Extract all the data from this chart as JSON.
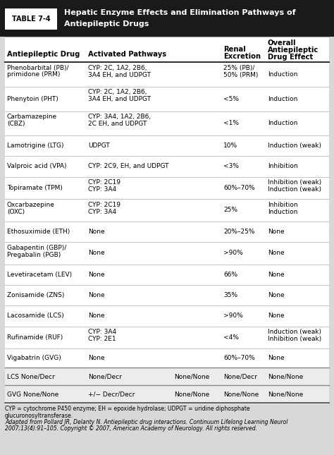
{
  "table_label": "TABLE 7-4",
  "title_line1": "Hepatic Enzyme Effects and Elimination Pathways of",
  "title_line2": "Antiepileptic Drugs",
  "header_bg": "#1a1a1a",
  "outer_bg": "#d8d8d8",
  "col_headers_line1": [
    "Antiepileptic Drug",
    "Activated Pathways",
    "",
    "Renal",
    "Overall"
  ],
  "col_headers_line2": [
    "",
    "",
    "",
    "Excretion",
    "Antiepileptic"
  ],
  "col_headers_line3": [
    "",
    "",
    "",
    "",
    "Drug Effect"
  ],
  "rows": [
    [
      "Phenobarbital (PB)/\nprimidone (PRM)",
      "CYP: 2C, 1A2, 2B6,\n3A4 EH, and UDPGT",
      "",
      "25% (PB)/\n50% (PRM)",
      "Induction"
    ],
    [
      "Phenytoin (PHT)",
      "CYP: 2C, 1A2, 2B6,\n3A4 EH, and UDPGT",
      "",
      "<5%",
      "Induction"
    ],
    [
      "Carbamazepine\n(CBZ)",
      "CYP: 3A4, 1A2, 2B6,\n2C EH, and UDPGT",
      "",
      "<1%",
      "Induction"
    ],
    [
      "Lamotrigine (LTG)",
      "UDPGT",
      "",
      "10%",
      "Induction (weak)"
    ],
    [
      "Valproic acid (VPA)",
      "CYP: 2C9, EH, and UDPGT",
      "",
      "<3%",
      "Inhibition"
    ],
    [
      "Topiramate (TPM)",
      "CYP: 2C19\nCYP: 3A4",
      "",
      "60%–70%",
      "Inhibition (weak)\nInduction (weak)"
    ],
    [
      "Oxcarbazepine\n(OXC)",
      "CYP: 2C19\nCYP: 3A4",
      "",
      "25%",
      "Inhibition\nInduction"
    ],
    [
      "Ethosuximide (ETH)",
      "None",
      "",
      "20%–25%",
      "None"
    ],
    [
      "Gabapentin (GBP)/\nPregabalin (PGB)",
      "None",
      "",
      ">90%",
      "None"
    ],
    [
      "Levetiracetam (LEV)",
      "None",
      "",
      "66%",
      "None"
    ],
    [
      "Zonisamide (ZNS)",
      "None",
      "",
      "35%",
      "None"
    ],
    [
      "Lacosamide (LCS)",
      "None",
      "",
      ">90%",
      "None"
    ],
    [
      "Rufinamide (RUF)",
      "CYP: 3A4\nCYP: 2E1",
      "",
      "<4%",
      "Induction (weak)\nInhibition (weak)"
    ],
    [
      "Vigabatrin (GVG)",
      "None",
      "",
      "60%–70%",
      "None"
    ],
    [
      "LCS None/Decr",
      "None/Decr",
      "None/None",
      "None/Decr",
      "None/None"
    ],
    [
      "GVG None/None",
      "+/− Decr/Decr",
      "None/None",
      "None/None",
      "None/None"
    ]
  ],
  "footer_lines": [
    "CYP = cytochrome P450 enzyme; EH = epoxide hydrolase; UDPGT = uridine diphosphate",
    "glucuronosyltransferase.",
    "Adapted from Pollard JR, Delanty N. Antiepileptic drug interactions. Continuum Lifelong Learning Neurol",
    "2007;13(4):91–105. Copyright © 2007, American Academy of Neurology. All rights reserved."
  ]
}
